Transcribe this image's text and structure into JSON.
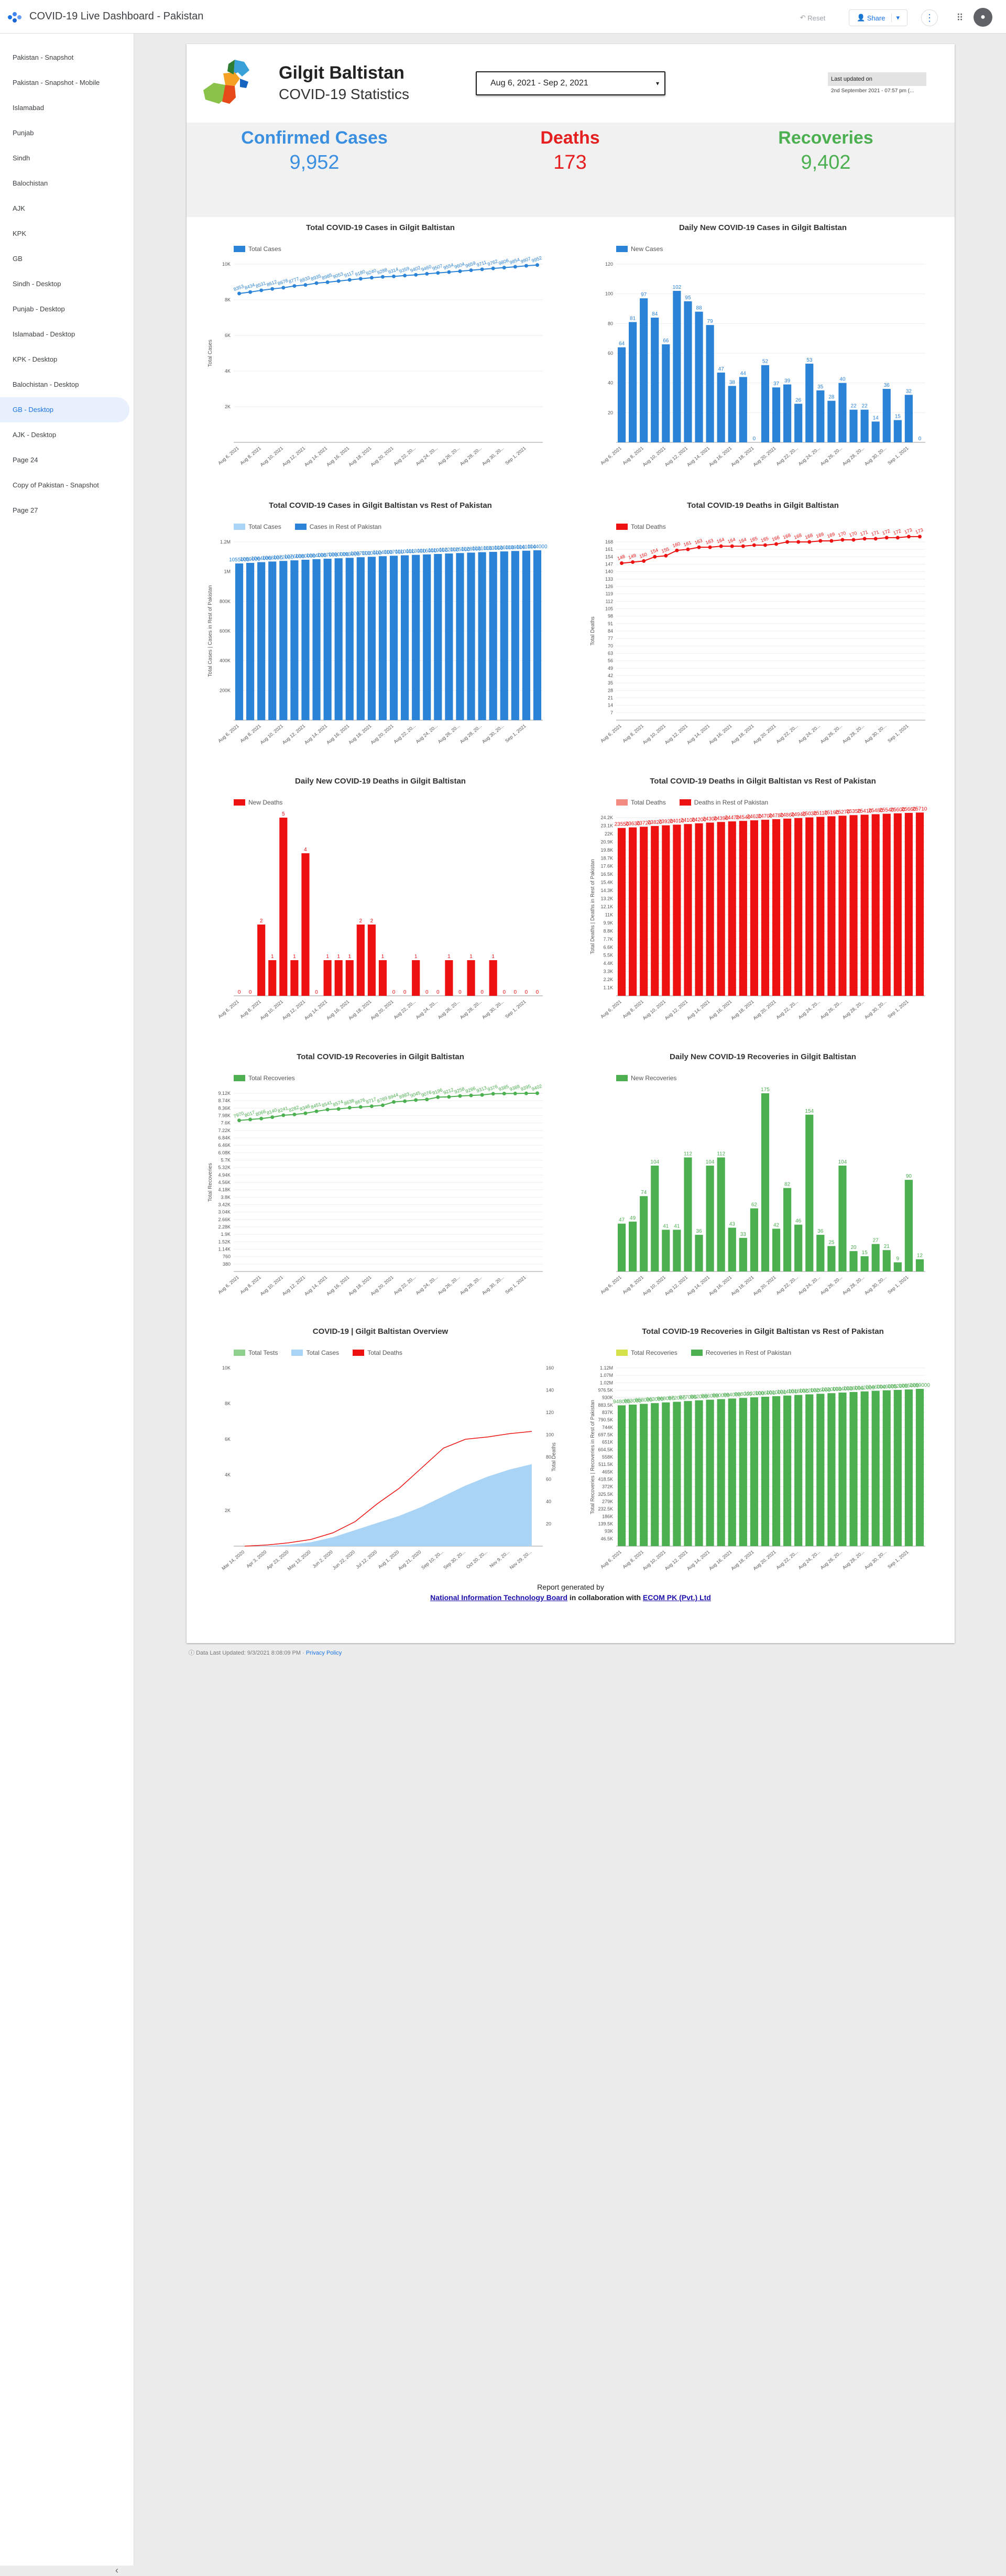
{
  "app": {
    "title": "COVID-19 Live Dashboard - Pakistan",
    "reset_label": "Reset",
    "share_label": "Share",
    "share_caret": "▾",
    "more_glyph": "⋮",
    "apps_glyph": "⠿",
    "account_glyph": "●",
    "collapse_glyph": "‹"
  },
  "sidebar": {
    "items": [
      {
        "label": "Pakistan - Snapshot"
      },
      {
        "label": "Pakistan - Snapshot - Mobile"
      },
      {
        "label": "Islamabad"
      },
      {
        "label": "Punjab"
      },
      {
        "label": "Sindh"
      },
      {
        "label": "Balochistan"
      },
      {
        "label": "AJK"
      },
      {
        "label": "KPK"
      },
      {
        "label": "GB"
      },
      {
        "label": "Sindh - Desktop"
      },
      {
        "label": "Punjab - Desktop"
      },
      {
        "label": "Islamabad - Desktop"
      },
      {
        "label": "KPK - Desktop"
      },
      {
        "label": "Balochistan - Desktop"
      },
      {
        "label": "GB - Desktop"
      },
      {
        "label": "AJK - Desktop"
      },
      {
        "label": "Page 24"
      },
      {
        "label": "Copy of Pakistan - Snapshot"
      },
      {
        "label": "Page 27"
      }
    ],
    "active_index": 14
  },
  "report": {
    "region": "Gilgit Baltistan",
    "subtitle": "COVID-19 Statistics",
    "date_range": "Aug 6, 2021 - Sep 2, 2021",
    "date_caret": "▾",
    "last_updated_label": "Last updated on",
    "last_updated_value": "2nd September 2021 - 07:57 pm (...",
    "stats": [
      {
        "label": "Confirmed Cases",
        "value": "9,952",
        "color": "#3b8fe0"
      },
      {
        "label": "Deaths",
        "value": "173",
        "color": "#e62020"
      },
      {
        "label": "Recoveries",
        "value": "9,402",
        "color": "#4caf50"
      }
    ],
    "footer": {
      "line1": "Report generated by",
      "link1": "National Information Technology Board",
      "mid": " in collaboration with ",
      "link2": "ECOM PK (Pvt.) Ltd"
    },
    "bottom_info": "Data Last Updated: 9/3/2021 8:08:09 PM",
    "privacy": "Privacy Policy"
  },
  "colors": {
    "blue": "#2a83d6",
    "red": "#ee1111",
    "green": "#4caf50",
    "light_blue": "#aad4f5",
    "light_green": "#8fd08f",
    "yellow": "#d5e24a"
  },
  "chart_data": [
    {
      "id": "c1",
      "type": "line",
      "title": "Total COVID-19 Cases in Gilgit Baltistan",
      "series_names": [
        "Total Cases"
      ],
      "ylabel": "Total Cases",
      "ylim": [
        0,
        10000
      ],
      "yticks": [
        "2K",
        "4K",
        "6K",
        "8K",
        "10K"
      ],
      "x": [
        "Aug 6, 2021",
        "Aug 7",
        "Aug 8, 2021",
        "Aug 9",
        "Aug 10, 2021",
        "Aug 11",
        "Aug 12, 2021",
        "Aug 13",
        "Aug 14, 2021",
        "Aug 15",
        "Aug 16, 2021",
        "Aug 17",
        "Aug 18, 2021",
        "Aug 19",
        "Aug 20, 2021",
        "Aug 21",
        "Aug 22, 20...",
        "Aug 23",
        "Aug 24, 20...",
        "Aug 25",
        "Aug 26, 20...",
        "Aug 27",
        "Aug 28, 20...",
        "Aug 29",
        "Aug 30, 20...",
        "Aug 31",
        "Sep 1, 2021",
        "Sep 2"
      ],
      "values": [
        8353,
        8434,
        8531,
        8612,
        8678,
        8777,
        8833,
        8935,
        8985,
        9053,
        9117,
        9180,
        9240,
        9288,
        9314,
        9359,
        9402,
        9460,
        9507,
        9554,
        9604,
        9659,
        9711,
        9762,
        9806,
        9854,
        9907,
        9952
      ]
    },
    {
      "id": "c2",
      "type": "bar",
      "title": "Daily New COVID-19 Cases in Gilgit Baltistan",
      "series_names": [
        "New Cases"
      ],
      "ylim": [
        0,
        120
      ],
      "yticks": [
        "20",
        "40",
        "60",
        "80",
        "100",
        "120"
      ],
      "values": [
        64,
        81,
        97,
        84,
        66,
        102,
        95,
        88,
        79,
        47,
        38,
        44,
        0,
        52,
        37,
        39,
        26,
        53,
        35,
        28,
        40,
        22,
        22,
        14,
        36,
        15,
        32,
        0
      ]
    },
    {
      "id": "c3",
      "type": "bar",
      "title": "Total COVID-19 Cases in Gilgit Baltistan vs Rest of Pakistan",
      "series_names": [
        "Total Cases",
        "Cases in Rest of Pakistan"
      ],
      "ylabel": "Total Cases | Cases in Rest of Pakistan",
      "ylim": [
        0,
        1200000
      ],
      "yticks": [
        "200K",
        "400K",
        "600K",
        "800K",
        "1M",
        "1.2M"
      ],
      "values": [
        1055000,
        1059000,
        1064000,
        1068000,
        1072000,
        1076000,
        1080000,
        1084000,
        1087000,
        1090000,
        1093000,
        1097000,
        1100000,
        1104000,
        1107000,
        1110000,
        1113000,
        1116000,
        1119000,
        1122000,
        1125000,
        1128000,
        1131000,
        1133000,
        1136000,
        1139000,
        1141000,
        1144000
      ]
    },
    {
      "id": "c4",
      "type": "line",
      "title": "Total COVID-19 Deaths in Gilgit Baltistan",
      "series_names": [
        "Total Deaths"
      ],
      "ylabel": "Total Deaths",
      "ylim": [
        0,
        168
      ],
      "yticks": [
        "7",
        "14",
        "21",
        "28",
        "35",
        "42",
        "49",
        "56",
        "63",
        "70",
        "77",
        "84",
        "91",
        "98",
        "105",
        "112",
        "119",
        "126",
        "133",
        "140",
        "147",
        "154",
        "161",
        "168"
      ],
      "values": [
        148,
        149,
        150,
        154,
        155,
        160,
        161,
        163,
        163,
        164,
        164,
        164,
        165,
        165,
        166,
        168,
        168,
        168,
        169,
        169,
        170,
        170,
        171,
        171,
        172,
        172,
        173,
        173
      ]
    },
    {
      "id": "c5",
      "type": "bar",
      "title": "Daily New COVID-19 Deaths in Gilgit Baltistan",
      "series_names": [
        "New Deaths"
      ],
      "ylim": [
        0,
        5
      ],
      "values": [
        0,
        0,
        2,
        1,
        5,
        1,
        4,
        0,
        1,
        1,
        1,
        2,
        2,
        1,
        0,
        0,
        1,
        0,
        0,
        1,
        0,
        1,
        0,
        1,
        0,
        0,
        0,
        0
      ]
    },
    {
      "id": "c6",
      "type": "bar",
      "title": "Total COVID-19 Deaths in Gilgit Baltistan vs Rest of Pakistan",
      "series_names": [
        "Total Deaths",
        "Deaths in Rest of Pakistan"
      ],
      "ylabel": "Total Deaths | Deaths in Rest of Pakistan",
      "ylim": [
        0,
        25000
      ],
      "yticks": [
        "1.1K",
        "2.2K",
        "3.3K",
        "4.4K",
        "5.5K",
        "6.6K",
        "7.7K",
        "8.8K",
        "9.9K",
        "11K",
        "12.1K",
        "13.2K",
        "14.3K",
        "15.4K",
        "16.5K",
        "17.6K",
        "18.7K",
        "19.8K",
        "20.9K",
        "22K",
        "23.1K",
        "24.2K"
      ],
      "values": [
        23550,
        23630,
        23720,
        23820,
        23920,
        24010,
        24100,
        24200,
        24300,
        24390,
        24470,
        24540,
        24620,
        24700,
        24780,
        24860,
        24940,
        25030,
        25110,
        25190,
        25270,
        25350,
        25410,
        25480,
        25540,
        25600,
        25660,
        25710
      ]
    },
    {
      "id": "c7",
      "type": "line",
      "title": "Total COVID-19 Recoveries in Gilgit Baltistan",
      "series_names": [
        "Total Recoveries"
      ],
      "ylabel": "Total Recoveries",
      "ylim": [
        0,
        9400
      ],
      "yticks": [
        "380",
        "760",
        "1.14K",
        "1.52K",
        "1.9K",
        "2.28K",
        "2.66K",
        "3.04K",
        "3.42K",
        "3.8K",
        "4.18K",
        "4.56K",
        "4.94K",
        "5.32K",
        "5.7K",
        "6.08K",
        "6.46K",
        "6.84K",
        "7.22K",
        "7.6K",
        "7.98K",
        "8.36K",
        "8.74K",
        "9.12K"
      ],
      "values": [
        7970,
        8017,
        8066,
        8140,
        8241,
        8282,
        8346,
        8451,
        8541,
        8574,
        8638,
        8676,
        8717,
        8769,
        8944,
        8983,
        9045,
        9076,
        9196,
        9212,
        9258,
        9286,
        9313,
        9376,
        9385,
        9388,
        9395,
        9402
      ]
    },
    {
      "id": "c8",
      "type": "bar",
      "title": "Daily New COVID-19 Recoveries in Gilgit Baltistan",
      "series_names": [
        "New Recoveries"
      ],
      "ylim": [
        0,
        175
      ],
      "values": [
        47,
        49,
        74,
        104,
        41,
        41,
        112,
        36,
        104,
        112,
        43,
        33,
        62,
        175,
        42,
        82,
        46,
        154,
        36,
        25,
        104,
        20,
        15,
        27,
        21,
        9,
        90,
        12
      ]
    },
    {
      "id": "c9",
      "type": "area",
      "title": "COVID-19   |   Gilgit Baltistan Overview",
      "series_names": [
        "Total Tests",
        "Total Cases",
        "Total Deaths"
      ],
      "ylabel_right": "Total Deaths",
      "yticks_left": [
        "2K",
        "4K",
        "6K",
        "8K",
        "10K"
      ],
      "yticks_right": [
        "20",
        "40",
        "60",
        "80",
        "100",
        "120",
        "140",
        "160"
      ],
      "x": [
        "Mar 14, 2020",
        "Apr 3, 2020",
        "Apr 23, 2020",
        "May 13, 2020",
        "Jun 2, 2020",
        "Jun 22, 2020",
        "Jul 12, 2020",
        "Aug 1, 2020",
        "Aug 21, 2020",
        "Sep 10, 20...",
        "Sep 30, 20...",
        "Oct 20, 20...",
        "Nov 9, 20...",
        "Nov 29, 20..."
      ],
      "cases": [
        0,
        20,
        80,
        220,
        500,
        900,
        1300,
        1700,
        2200,
        2800,
        3400,
        3900,
        4300,
        4600
      ],
      "deaths": [
        0,
        1,
        3,
        6,
        12,
        22,
        38,
        52,
        70,
        88,
        96,
        98,
        101,
        103
      ]
    },
    {
      "id": "c10",
      "type": "bar",
      "title": "Total COVID-19 Recoveries in Gilgit Baltistan vs Rest of Pakistan",
      "series_names": [
        "Total Recoveries",
        "Recoveries in Rest of Pakistan"
      ],
      "ylabel": "Total Recoveries | Recoveries in Rest of Pakistan",
      "ylim": [
        0,
        1200000
      ],
      "yticks": [
        "46.5K",
        "93K",
        "139.5K",
        "186K",
        "232.5K",
        "279K",
        "325.5K",
        "372K",
        "418.5K",
        "465K",
        "511.5K",
        "558K",
        "604.5K",
        "651K",
        "697.5K",
        "744K",
        "790.5K",
        "837K",
        "883.5K",
        "930K",
        "976.5K",
        "1.02M",
        "1.07M",
        "1.12M"
      ],
      "values": [
        948000,
        953000,
        958000,
        963000,
        968000,
        972000,
        977000,
        982000,
        986000,
        990000,
        994000,
        998000,
        1002000,
        1006000,
        1010000,
        1014000,
        1018000,
        1022000,
        1026000,
        1030000,
        1034000,
        1038000,
        1042000,
        1046000,
        1049000,
        1052000,
        1055000,
        1059000
      ]
    }
  ]
}
